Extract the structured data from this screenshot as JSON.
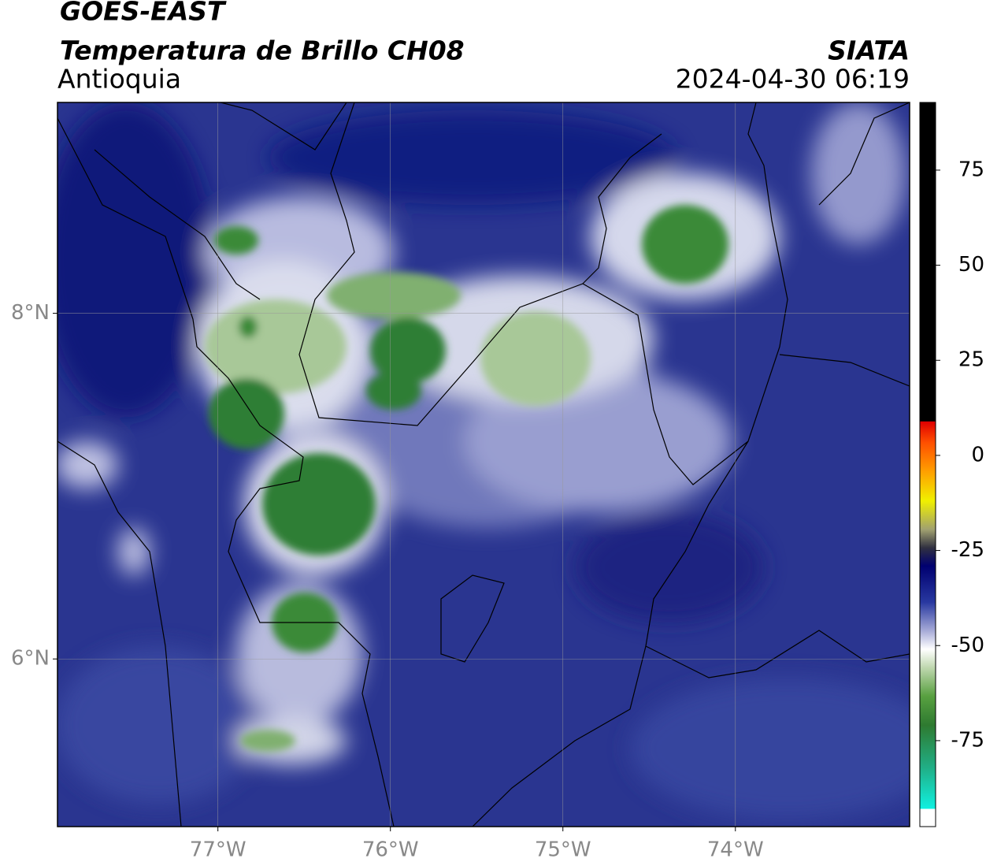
{
  "header": {
    "satellite": "GOES-EAST",
    "product": "Temperatura de Brillo CH08",
    "region": "Antioquia",
    "source": "SIATA",
    "timestamp": "2024-04-30 06:19"
  },
  "map": {
    "xlim": [
      -77.93,
      -72.99
    ],
    "ylim": [
      5.03,
      9.22
    ],
    "xticks": [
      {
        "value": -77,
        "label": "77°W"
      },
      {
        "value": -76,
        "label": "76°W"
      },
      {
        "value": -75,
        "label": "75°W"
      },
      {
        "value": -74,
        "label": "74°W"
      }
    ],
    "yticks": [
      {
        "value": 6,
        "label": "6°N"
      },
      {
        "value": 8,
        "label": "8°N"
      }
    ],
    "grid": true
  },
  "colorbar": {
    "lim": [
      -97.6,
      92.8
    ],
    "ticks": [
      -75,
      -50,
      -25,
      0,
      25,
      50,
      75
    ]
  }
}
